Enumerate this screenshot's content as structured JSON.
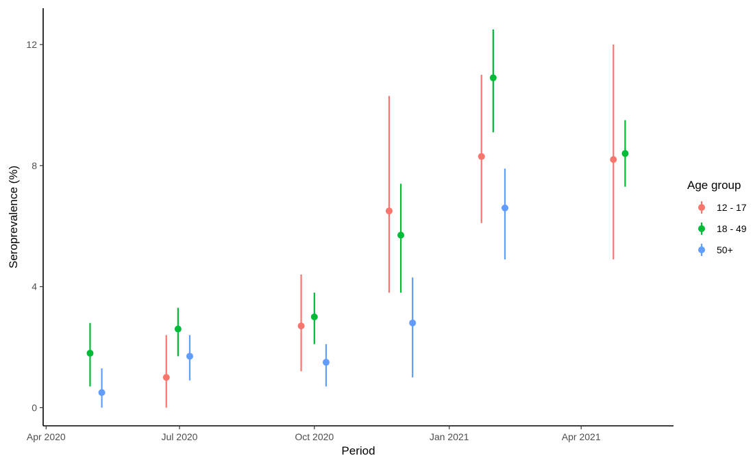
{
  "chart_data": {
    "type": "scatter",
    "subtype": "pointrange",
    "title": "",
    "xlabel": "Period",
    "ylabel": "Seroprevalence (%)",
    "x_ticks": [
      "Apr 2020",
      "Jul 2020",
      "Oct 2020",
      "Jan 2021",
      "Apr 2021"
    ],
    "x_tick_dates": [
      "2020-04-01",
      "2020-07-01",
      "2020-10-01",
      "2021-01-01",
      "2021-04-01"
    ],
    "xlim": [
      "2020-03-30",
      "2021-06-03"
    ],
    "y_ticks": [
      "0",
      "4",
      "8",
      "12"
    ],
    "ylim": [
      -0.6,
      13.2
    ],
    "grid": false,
    "legend": {
      "title": "Age group",
      "position": "right"
    },
    "series": [
      {
        "name": "12 - 17",
        "color": "#F8766D",
        "points": [
          {
            "x": "2020-06-22",
            "y": 1.0,
            "ymin": 0.0,
            "ymax": 2.4
          },
          {
            "x": "2020-09-22",
            "y": 2.7,
            "ymin": 1.2,
            "ymax": 4.4
          },
          {
            "x": "2020-11-21",
            "y": 6.5,
            "ymin": 3.8,
            "ymax": 10.3
          },
          {
            "x": "2021-01-23",
            "y": 8.3,
            "ymin": 6.1,
            "ymax": 11.0
          },
          {
            "x": "2021-04-23",
            "y": 8.2,
            "ymin": 4.9,
            "ymax": 12.0
          }
        ]
      },
      {
        "name": "18 - 49",
        "color": "#00BA38",
        "points": [
          {
            "x": "2020-05-01",
            "y": 1.8,
            "ymin": 0.7,
            "ymax": 2.8
          },
          {
            "x": "2020-06-30",
            "y": 2.6,
            "ymin": 1.7,
            "ymax": 3.3
          },
          {
            "x": "2020-10-01",
            "y": 3.0,
            "ymin": 2.1,
            "ymax": 3.8
          },
          {
            "x": "2020-11-29",
            "y": 5.7,
            "ymin": 3.8,
            "ymax": 7.4
          },
          {
            "x": "2021-01-31",
            "y": 10.9,
            "ymin": 9.1,
            "ymax": 12.5
          },
          {
            "x": "2021-05-01",
            "y": 8.4,
            "ymin": 7.3,
            "ymax": 9.5
          }
        ]
      },
      {
        "name": "50+",
        "color": "#619CFF",
        "points": [
          {
            "x": "2020-05-09",
            "y": 0.5,
            "ymin": 0.0,
            "ymax": 1.3
          },
          {
            "x": "2020-07-08",
            "y": 1.7,
            "ymin": 0.9,
            "ymax": 2.4
          },
          {
            "x": "2020-10-09",
            "y": 1.5,
            "ymin": 0.7,
            "ymax": 2.1
          },
          {
            "x": "2020-12-07",
            "y": 2.8,
            "ymin": 1.0,
            "ymax": 4.3
          },
          {
            "x": "2021-02-08",
            "y": 6.6,
            "ymin": 4.9,
            "ymax": 7.9
          }
        ]
      }
    ]
  }
}
